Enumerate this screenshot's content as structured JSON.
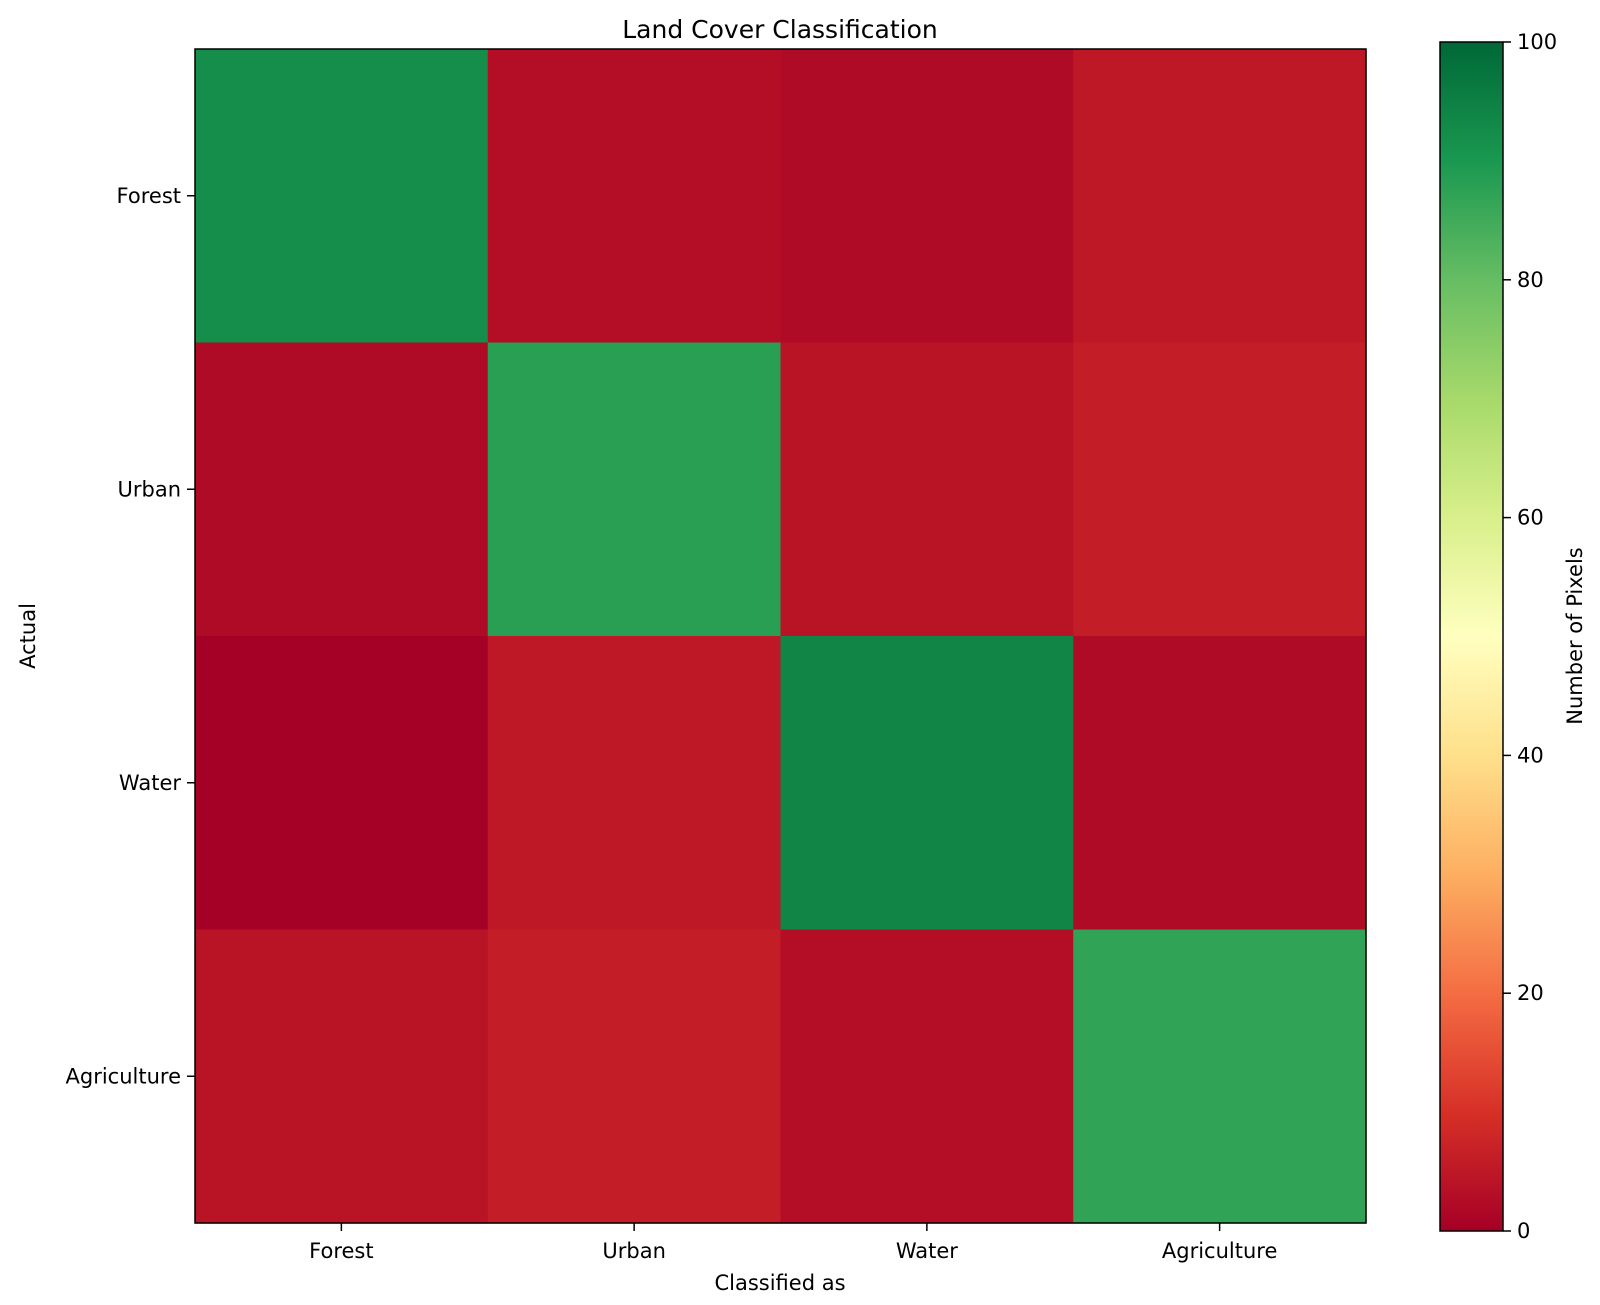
{
  "chart_data": {
    "type": "heatmap",
    "title": "Land Cover Classification",
    "xlabel": "Classified as",
    "ylabel": "Actual",
    "x_categories": [
      "Forest",
      "Urban",
      "Water",
      "Agriculture"
    ],
    "y_categories": [
      "Forest",
      "Urban",
      "Water",
      "Agriculture"
    ],
    "values": [
      [
        92,
        3,
        2,
        5
      ],
      [
        2,
        88,
        4,
        6
      ],
      [
        0,
        5,
        94,
        2
      ],
      [
        4,
        6,
        3,
        87
      ]
    ],
    "colorbar": {
      "label": "Number of Pixels",
      "min": 0,
      "max": 100,
      "ticks": [
        0,
        20,
        40,
        60,
        80,
        100
      ],
      "colormap": "RdYlGn"
    }
  }
}
